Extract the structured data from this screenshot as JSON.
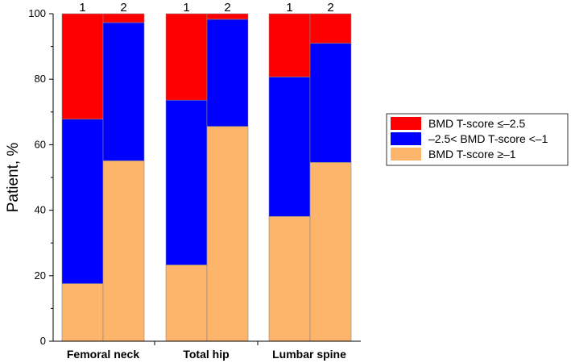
{
  "chart_data": {
    "type": "bar",
    "stacked": true,
    "ylabel": "Patient, %",
    "ylim": [
      0,
      100
    ],
    "yticks": [
      0,
      20,
      40,
      60,
      80,
      100
    ],
    "categories": [
      "Femoral neck",
      "Total hip",
      "Lumbar spine"
    ],
    "bar_labels": [
      "1",
      "2"
    ],
    "series": [
      {
        "name": "BMD T-score ≥–1",
        "color": "#FDB46B",
        "values": [
          [
            17.6,
            55.1
          ],
          [
            23.3,
            65.6
          ],
          [
            38.1,
            54.6
          ]
        ]
      },
      {
        "name": "–2.5< BMD T-score <–1",
        "color": "#0000FF",
        "values": [
          [
            50.2,
            42.2
          ],
          [
            50.3,
            32.7
          ],
          [
            42.6,
            36.4
          ]
        ]
      },
      {
        "name": "BMD T-score ≤–2.5",
        "color": "#FF0000",
        "values": [
          [
            32.2,
            2.7
          ],
          [
            26.4,
            1.7
          ],
          [
            19.3,
            9.0
          ]
        ]
      }
    ],
    "legend": {
      "placement": "right",
      "order": [
        "BMD T-score ≤–2.5",
        "–2.5< BMD T-score <–1",
        "BMD T-score ≥–1"
      ]
    },
    "grid": false
  }
}
